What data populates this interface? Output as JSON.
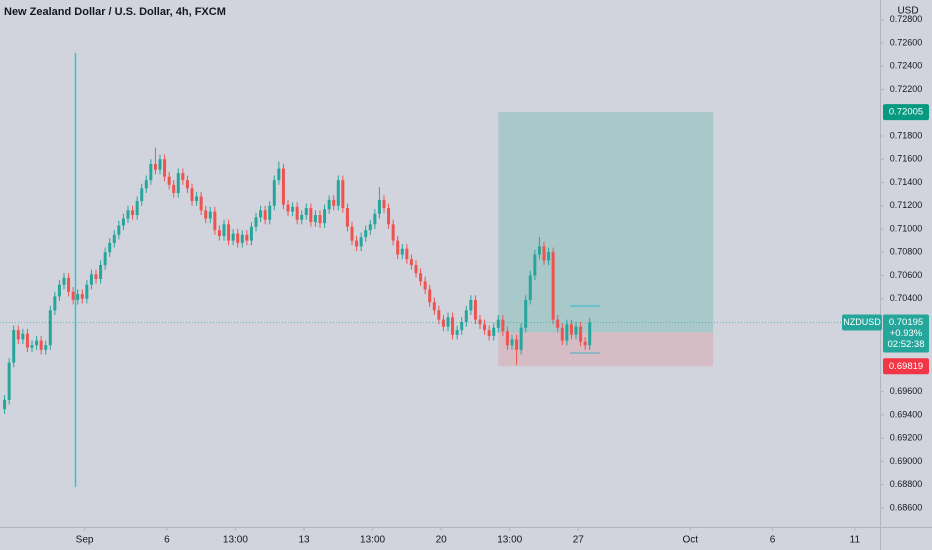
{
  "chart_data": {
    "type": "candlestick",
    "title": "New Zealand Dollar / U.S. Dollar, 4h, FXCM",
    "currency": "USD",
    "symbol": "NZDUSD",
    "change": "+0.93%",
    "countdown": "02:52:38",
    "up_color": "#26a69a",
    "down_color": "#ef5350",
    "grid": false,
    "xlim": [
      0,
      192.5
    ],
    "xticks": [
      {
        "value": 18.5,
        "label": "Sep"
      },
      {
        "value": 36.5,
        "label": "6"
      },
      {
        "value": 51.5,
        "label": "13:00"
      },
      {
        "value": 66.5,
        "label": "13"
      },
      {
        "value": 81.5,
        "label": "13:00"
      },
      {
        "value": 96.5,
        "label": "20"
      },
      {
        "value": 111.5,
        "label": "13:00"
      },
      {
        "value": 126.5,
        "label": "27"
      },
      {
        "value": 151,
        "label": "Oct"
      },
      {
        "value": 169,
        "label": "6"
      },
      {
        "value": 187,
        "label": "11"
      }
    ],
    "ylim": [
      0.68436,
      0.7297
    ],
    "yticks": [
      {
        "value": 0.728,
        "label": "0.72800"
      },
      {
        "value": 0.726,
        "label": "0.72600"
      },
      {
        "value": 0.724,
        "label": "0.72400"
      },
      {
        "value": 0.722,
        "label": "0.72200"
      },
      {
        "value": 0.718,
        "label": "0.71800"
      },
      {
        "value": 0.716,
        "label": "0.71600"
      },
      {
        "value": 0.714,
        "label": "0.71400"
      },
      {
        "value": 0.712,
        "label": "0.71200"
      },
      {
        "value": 0.71,
        "label": "0.71000"
      },
      {
        "value": 0.708,
        "label": "0.70800"
      },
      {
        "value": 0.706,
        "label": "0.70600"
      },
      {
        "value": 0.704,
        "label": "0.70400"
      },
      {
        "value": 0.696,
        "label": "0.69600"
      },
      {
        "value": 0.694,
        "label": "0.69400"
      },
      {
        "value": 0.692,
        "label": "0.69200"
      },
      {
        "value": 0.69,
        "label": "0.69000"
      },
      {
        "value": 0.688,
        "label": "0.68800"
      },
      {
        "value": 0.686,
        "label": "0.68600"
      }
    ],
    "position": {
      "start": 109,
      "end": 156,
      "entry": 0.7011,
      "target": 0.72005,
      "stop": 0.69819
    },
    "x": [
      1,
      2,
      3,
      4,
      5,
      6,
      7,
      8,
      9,
      10,
      11,
      12,
      13,
      14,
      15,
      16,
      17,
      18,
      19,
      20,
      21,
      22,
      23,
      24,
      25,
      26,
      27,
      28,
      29,
      30,
      31,
      32,
      33,
      34,
      35,
      36,
      37,
      38,
      39,
      40,
      41,
      42,
      43,
      44,
      45,
      46,
      47,
      48,
      49,
      50,
      51,
      52,
      53,
      54,
      55,
      56,
      57,
      58,
      59,
      60,
      61,
      62,
      63,
      64,
      65,
      66,
      67,
      68,
      69,
      70,
      71,
      72,
      73,
      74,
      75,
      76,
      77,
      78,
      79,
      80,
      81,
      82,
      83,
      84,
      85,
      86,
      87,
      88,
      89,
      90,
      91,
      92,
      93,
      94,
      95,
      96,
      97,
      98,
      99,
      100,
      101,
      102,
      103,
      104,
      105,
      106,
      107,
      108,
      109,
      110,
      111,
      112,
      113,
      114,
      115,
      116,
      117,
      118,
      119,
      120,
      121,
      122,
      123,
      124,
      125,
      126,
      127,
      128,
      129
    ],
    "candles": [
      [
        0.6945,
        0.6957,
        0.6941,
        0.6953
      ],
      [
        0.6953,
        0.6989,
        0.6949,
        0.6985
      ],
      [
        0.6985,
        0.7017,
        0.6981,
        0.7013
      ],
      [
        0.7013,
        0.7017,
        0.7001,
        0.7005
      ],
      [
        0.7005,
        0.7014,
        0.7001,
        0.701
      ],
      [
        0.701,
        0.7014,
        0.6994,
        0.6998
      ],
      [
        0.6998,
        0.7004,
        0.6994,
        0.7
      ],
      [
        0.7,
        0.7008,
        0.6996,
        0.7004
      ],
      [
        0.7004,
        0.7008,
        0.6992,
        0.6996
      ],
      [
        0.6996,
        0.7004,
        0.6992,
        0.7
      ],
      [
        0.7,
        0.7034,
        0.6996,
        0.703
      ],
      [
        0.703,
        0.7046,
        0.7026,
        0.7042
      ],
      [
        0.7042,
        0.7056,
        0.7038,
        0.7052
      ],
      [
        0.7052,
        0.7062,
        0.7048,
        0.7058
      ],
      [
        0.7058,
        0.7062,
        0.7042,
        0.7046
      ],
      [
        0.7046,
        0.705,
        0.7035,
        0.7039
      ],
      [
        0.7039,
        0.7048,
        0.7035,
        0.7044
      ],
      [
        0.7044,
        0.7048,
        0.7036,
        0.704
      ],
      [
        0.704,
        0.7056,
        0.7036,
        0.7052
      ],
      [
        0.7052,
        0.7065,
        0.7048,
        0.7061
      ],
      [
        0.7061,
        0.7065,
        0.7053,
        0.7057
      ],
      [
        0.7057,
        0.7073,
        0.7053,
        0.7069
      ],
      [
        0.7069,
        0.7084,
        0.7065,
        0.708
      ],
      [
        0.708,
        0.7092,
        0.7076,
        0.7088
      ],
      [
        0.7088,
        0.7099,
        0.7084,
        0.7095
      ],
      [
        0.7095,
        0.7107,
        0.7091,
        0.7103
      ],
      [
        0.7103,
        0.7113,
        0.7099,
        0.7109
      ],
      [
        0.7109,
        0.712,
        0.7105,
        0.7116
      ],
      [
        0.7116,
        0.712,
        0.7108,
        0.7112
      ],
      [
        0.7112,
        0.7128,
        0.7108,
        0.7124
      ],
      [
        0.7124,
        0.7139,
        0.712,
        0.7135
      ],
      [
        0.7135,
        0.7146,
        0.7131,
        0.7142
      ],
      [
        0.7142,
        0.716,
        0.7138,
        0.7156
      ],
      [
        0.7156,
        0.717,
        0.7147,
        0.7151
      ],
      [
        0.7151,
        0.7164,
        0.7147,
        0.716
      ],
      [
        0.716,
        0.7164,
        0.7141,
        0.7145
      ],
      [
        0.7145,
        0.7149,
        0.7134,
        0.7138
      ],
      [
        0.7138,
        0.7142,
        0.7127,
        0.7131
      ],
      [
        0.7131,
        0.7152,
        0.7127,
        0.7148
      ],
      [
        0.7148,
        0.7152,
        0.7138,
        0.7142
      ],
      [
        0.7142,
        0.7146,
        0.7131,
        0.7135
      ],
      [
        0.7135,
        0.7139,
        0.712,
        0.7124
      ],
      [
        0.7124,
        0.7132,
        0.712,
        0.7128
      ],
      [
        0.7128,
        0.7132,
        0.7112,
        0.7116
      ],
      [
        0.7116,
        0.712,
        0.7105,
        0.7109
      ],
      [
        0.7109,
        0.7119,
        0.7105,
        0.7115
      ],
      [
        0.7115,
        0.7119,
        0.7095,
        0.7099
      ],
      [
        0.7099,
        0.7103,
        0.709,
        0.7094
      ],
      [
        0.7094,
        0.7108,
        0.709,
        0.7104
      ],
      [
        0.7104,
        0.7108,
        0.7086,
        0.709
      ],
      [
        0.709,
        0.71,
        0.7086,
        0.7096
      ],
      [
        0.7096,
        0.71,
        0.7084,
        0.7088
      ],
      [
        0.7088,
        0.7099,
        0.7084,
        0.7095
      ],
      [
        0.7095,
        0.7099,
        0.7086,
        0.709
      ],
      [
        0.709,
        0.7106,
        0.7086,
        0.7102
      ],
      [
        0.7102,
        0.7114,
        0.7098,
        0.711
      ],
      [
        0.711,
        0.712,
        0.7106,
        0.7116
      ],
      [
        0.7116,
        0.712,
        0.7104,
        0.7108
      ],
      [
        0.7108,
        0.7124,
        0.7104,
        0.712
      ],
      [
        0.712,
        0.7146,
        0.7116,
        0.7142
      ],
      [
        0.7142,
        0.7158,
        0.7138,
        0.7152
      ],
      [
        0.7152,
        0.7156,
        0.7117,
        0.7121
      ],
      [
        0.7121,
        0.7125,
        0.7111,
        0.7115
      ],
      [
        0.7115,
        0.7123,
        0.7111,
        0.7119
      ],
      [
        0.7119,
        0.7123,
        0.7104,
        0.7108
      ],
      [
        0.7108,
        0.7116,
        0.7104,
        0.7112
      ],
      [
        0.7112,
        0.7122,
        0.7108,
        0.7118
      ],
      [
        0.7118,
        0.7122,
        0.7102,
        0.7106
      ],
      [
        0.7106,
        0.7116,
        0.7102,
        0.7112
      ],
      [
        0.7112,
        0.7116,
        0.7101,
        0.7105
      ],
      [
        0.7105,
        0.7121,
        0.7101,
        0.7117
      ],
      [
        0.7117,
        0.7129,
        0.7113,
        0.7125
      ],
      [
        0.7125,
        0.7129,
        0.7116,
        0.712
      ],
      [
        0.712,
        0.7146,
        0.7116,
        0.7142
      ],
      [
        0.7142,
        0.7146,
        0.7114,
        0.7118
      ],
      [
        0.7118,
        0.7122,
        0.7098,
        0.7102
      ],
      [
        0.7102,
        0.7106,
        0.7086,
        0.709
      ],
      [
        0.709,
        0.7094,
        0.7081,
        0.7085
      ],
      [
        0.7085,
        0.7097,
        0.7081,
        0.7093
      ],
      [
        0.7093,
        0.7103,
        0.7089,
        0.7099
      ],
      [
        0.7099,
        0.7108,
        0.7095,
        0.7104
      ],
      [
        0.7104,
        0.7117,
        0.71,
        0.7113
      ],
      [
        0.7113,
        0.7136,
        0.7109,
        0.7125
      ],
      [
        0.7125,
        0.7129,
        0.7114,
        0.7118
      ],
      [
        0.7118,
        0.7122,
        0.71,
        0.7104
      ],
      [
        0.7104,
        0.7108,
        0.7086,
        0.709
      ],
      [
        0.709,
        0.7094,
        0.7074,
        0.7078
      ],
      [
        0.7078,
        0.7087,
        0.7074,
        0.7083
      ],
      [
        0.7083,
        0.7087,
        0.707,
        0.7074
      ],
      [
        0.7074,
        0.7078,
        0.7065,
        0.7069
      ],
      [
        0.7069,
        0.7073,
        0.7058,
        0.7062
      ],
      [
        0.7062,
        0.7066,
        0.7051,
        0.7055
      ],
      [
        0.7055,
        0.7059,
        0.7044,
        0.7048
      ],
      [
        0.7048,
        0.7052,
        0.7033,
        0.7037
      ],
      [
        0.7037,
        0.7041,
        0.7026,
        0.703
      ],
      [
        0.703,
        0.7034,
        0.7018,
        0.7022
      ],
      [
        0.7022,
        0.7026,
        0.7012,
        0.7016
      ],
      [
        0.7016,
        0.7028,
        0.7012,
        0.7024
      ],
      [
        0.7024,
        0.7028,
        0.7005,
        0.7009
      ],
      [
        0.7009,
        0.7017,
        0.7005,
        0.7013
      ],
      [
        0.7013,
        0.7024,
        0.7009,
        0.702
      ],
      [
        0.702,
        0.7034,
        0.7016,
        0.703
      ],
      [
        0.703,
        0.7043,
        0.7026,
        0.7039
      ],
      [
        0.7039,
        0.7043,
        0.7018,
        0.7022
      ],
      [
        0.7022,
        0.7026,
        0.7014,
        0.7018
      ],
      [
        0.7018,
        0.7022,
        0.7009,
        0.7013
      ],
      [
        0.7013,
        0.7017,
        0.7004,
        0.7008
      ],
      [
        0.7008,
        0.7019,
        0.7004,
        0.7015
      ],
      [
        0.7015,
        0.7026,
        0.7011,
        0.7022
      ],
      [
        0.7022,
        0.7026,
        0.7008,
        0.7012
      ],
      [
        0.7012,
        0.7016,
        0.6996,
        0.7
      ],
      [
        0.7,
        0.7009,
        0.6996,
        0.7005
      ],
      [
        0.7005,
        0.7009,
        0.6983,
        0.6996
      ],
      [
        0.6996,
        0.7019,
        0.6992,
        0.7015
      ],
      [
        0.7015,
        0.7043,
        0.7011,
        0.7039
      ],
      [
        0.7039,
        0.7064,
        0.7035,
        0.706
      ],
      [
        0.706,
        0.7082,
        0.7056,
        0.7078
      ],
      [
        0.7078,
        0.7093,
        0.7074,
        0.7085
      ],
      [
        0.7085,
        0.7089,
        0.7069,
        0.7073
      ],
      [
        0.7073,
        0.7084,
        0.7069,
        0.708
      ],
      [
        0.708,
        0.7084,
        0.7018,
        0.7022
      ],
      [
        0.7022,
        0.7026,
        0.7011,
        0.7015
      ],
      [
        0.7015,
        0.7019,
        0.7,
        0.7004
      ],
      [
        0.7004,
        0.7022,
        0.7,
        0.7018
      ],
      [
        0.7018,
        0.7022,
        0.7005,
        0.7009
      ],
      [
        0.7009,
        0.702,
        0.7005,
        0.7016
      ],
      [
        0.7016,
        0.702,
        0.6999,
        0.7003
      ],
      [
        0.7003,
        0.7007,
        0.6996,
        0.7
      ],
      [
        0.7,
        0.70235,
        0.6996,
        0.70195
      ]
    ]
  }
}
